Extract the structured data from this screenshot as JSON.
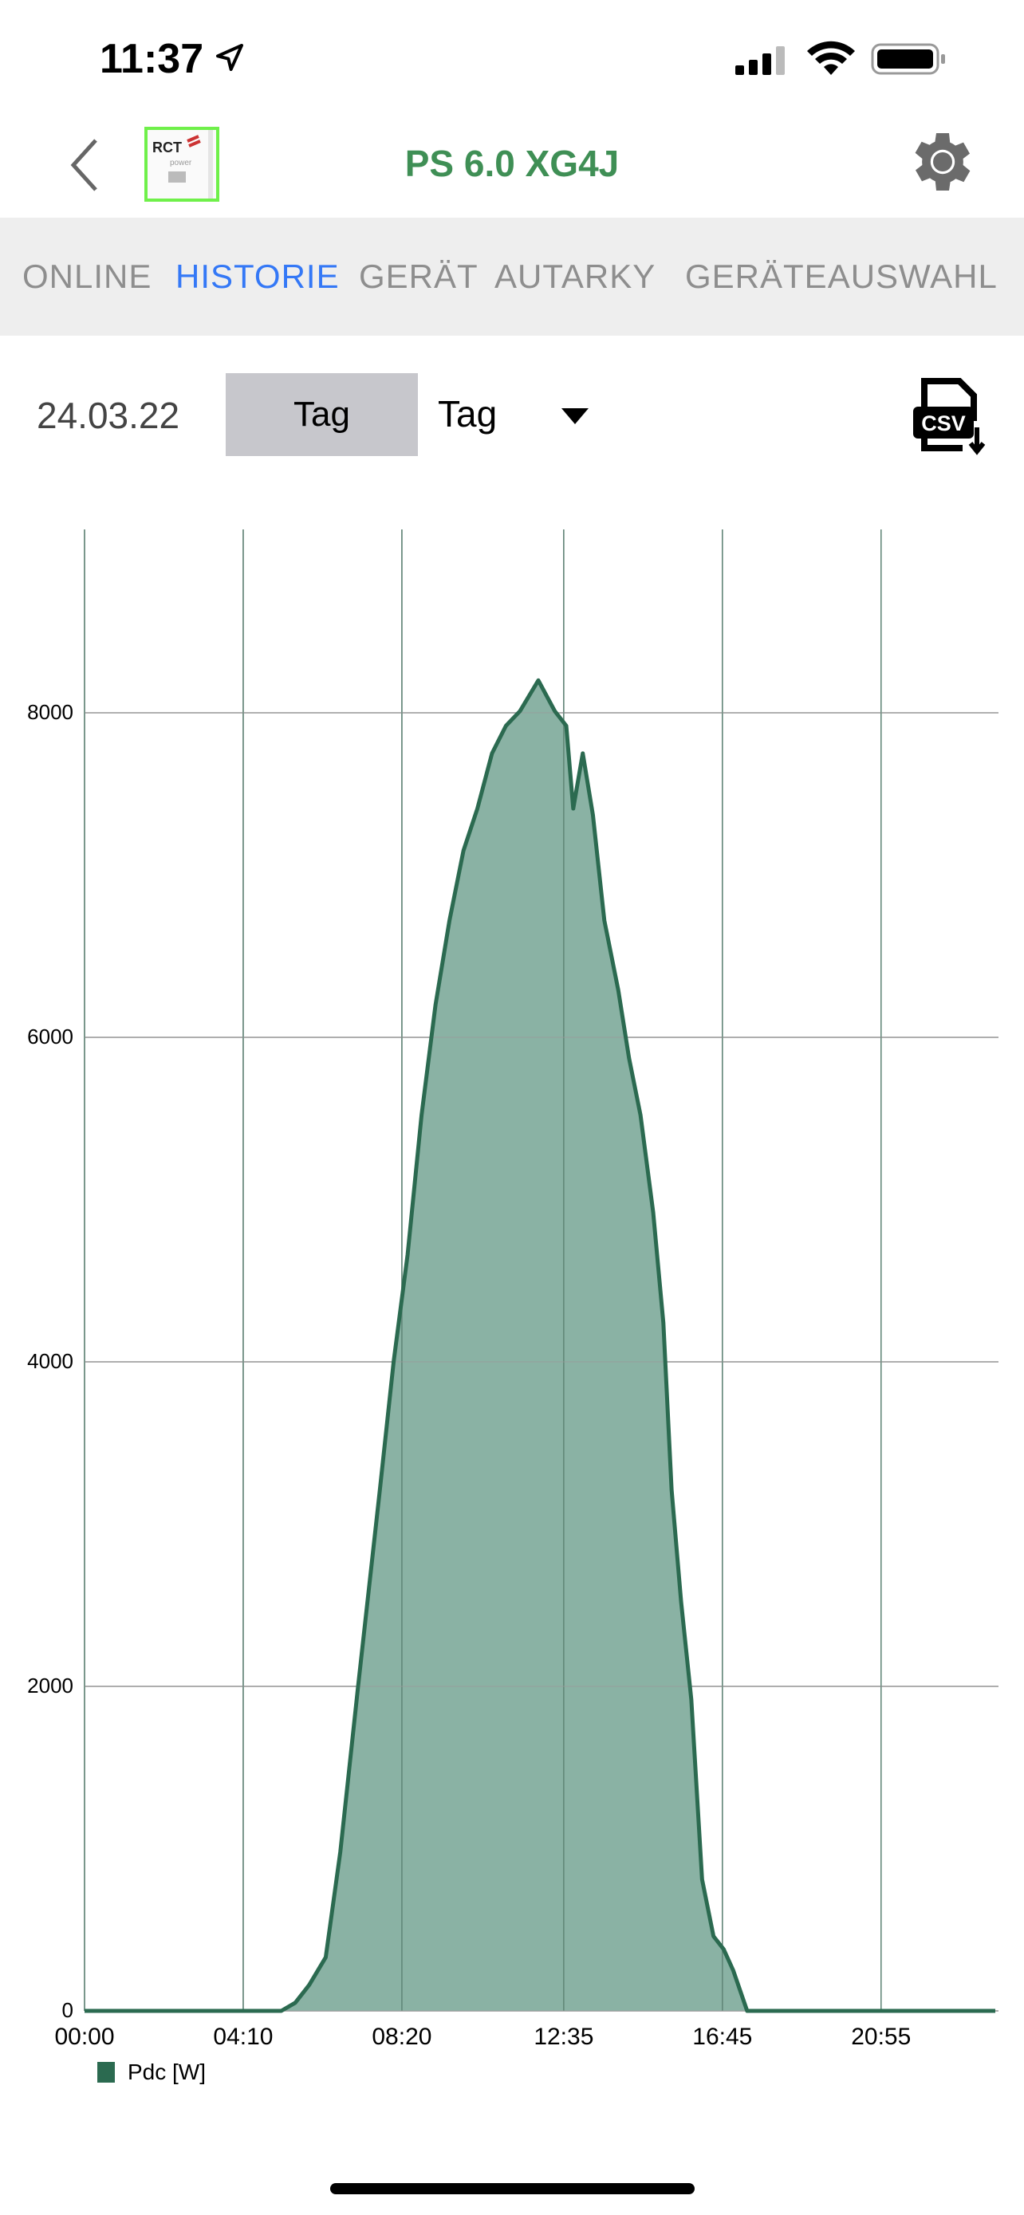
{
  "status_bar": {
    "time": "11:37",
    "icons": [
      "location-arrow-icon",
      "signal-icon",
      "wifi-icon",
      "battery-icon"
    ]
  },
  "nav": {
    "title": "PS 6.0 XG4J",
    "logo_text": "RCT power",
    "title_color": "#3f8f55"
  },
  "tabs": [
    {
      "label": "ONLINE",
      "active": false
    },
    {
      "label": "HISTORIE",
      "active": true
    },
    {
      "label": "GERÄT",
      "active": false
    },
    {
      "label": "AUTARKY",
      "active": false
    },
    {
      "label": "GERÄTEAUSWAHL",
      "active": false
    }
  ],
  "controls": {
    "date": "24.03.22",
    "period_button": "Tag",
    "period_select": "Tag",
    "csv_label": "CSV"
  },
  "chart_data": {
    "type": "area",
    "xlabel": "",
    "ylabel": "",
    "x_ticks": [
      "00:00",
      "04:10",
      "08:20",
      "12:35",
      "16:45",
      "20:55"
    ],
    "y_ticks": [
      0,
      2000,
      4000,
      6000,
      8000
    ],
    "ylim": [
      0,
      9130
    ],
    "xlim": [
      "00:00",
      "24:00"
    ],
    "grid": true,
    "legend": "bottom-left",
    "series": [
      {
        "name": "Pdc [W]",
        "color": "#2b6a50",
        "fill": "#8ab2a4",
        "x": [
          "00:00",
          "05:10",
          "05:32",
          "05:54",
          "06:20",
          "06:43",
          "07:11",
          "07:45",
          "08:07",
          "08:29",
          "08:51",
          "09:13",
          "09:35",
          "09:57",
          "10:19",
          "10:42",
          "11:04",
          "11:26",
          "11:55",
          "12:21",
          "12:39",
          "12:50",
          "13:05",
          "13:21",
          "13:39",
          "14:01",
          "14:18",
          "14:36",
          "14:56",
          "15:12",
          "15:25",
          "15:40",
          "15:56",
          "16:13",
          "16:31",
          "16:47",
          "17:02",
          "17:24",
          "23:55"
        ],
        "y": [
          0,
          0,
          50,
          160,
          330,
          980,
          2000,
          3200,
          4000,
          4660,
          5520,
          6200,
          6720,
          7150,
          7410,
          7750,
          7920,
          8010,
          8200,
          8010,
          7920,
          7410,
          7750,
          7370,
          6720,
          6290,
          5870,
          5520,
          4920,
          4240,
          3210,
          2520,
          1920,
          810,
          460,
          380,
          250,
          0,
          0
        ]
      }
    ]
  }
}
